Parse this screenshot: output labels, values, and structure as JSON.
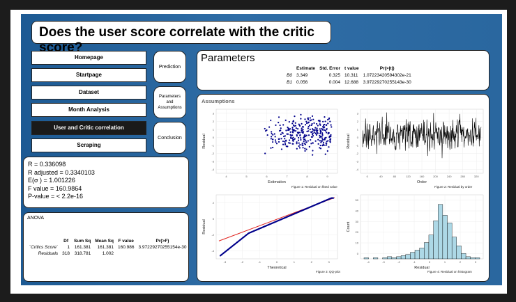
{
  "title": "Does the user score correlate with the critic score?",
  "nav": {
    "items": [
      "Homepage",
      "Startpage",
      "Dataset",
      "Month Analysis",
      "User and Critic correlation",
      "Scraping"
    ],
    "active_index": 4
  },
  "side_buttons": {
    "prediction": "Prediction",
    "parameters_line1": "Parameters",
    "parameters_line2": "and",
    "parameters_line3": "Assumptions",
    "conclusion": "Conclusion"
  },
  "stats": {
    "r": "R = 0.336098",
    "r_adj": "R adjusted = 0.3340103",
    "e_sigma": "E(σ ) = 1.001226",
    "f_value": "F value = 160.9864",
    "p_value": "P-value = < 2.2e-16"
  },
  "anova": {
    "label": "ANOVA",
    "headers": [
      "",
      "Df",
      "Sum Sq",
      "Mean Sq",
      "F value",
      "Pr(>F)"
    ],
    "rows": [
      [
        "`Critics Score`",
        "1",
        "161.381",
        "161.381",
        "160.986",
        "3.97229270255154e-30"
      ],
      [
        "Residuals",
        "318",
        "318.781",
        "1.002",
        "",
        ""
      ]
    ]
  },
  "parameters": {
    "title": "Parameters",
    "headers": [
      "",
      "Estimate",
      "Std. Error",
      "t value",
      "Pr(>|t|)"
    ],
    "rows": [
      [
        "B0",
        "3.349",
        "0.325",
        "10.311",
        "1.07223420594302e-21"
      ],
      [
        "B1",
        "0.056",
        "0.004",
        "12.688",
        "3.97229270255143e-30"
      ]
    ]
  },
  "assumptions": {
    "label": "Assumptions",
    "fig1": {
      "caption": "Figure 1: Residual on fitted value",
      "xlabel": "Estimation",
      "ylabel": "Residual",
      "xticks": [
        "4",
        "5",
        "6",
        "7",
        "8",
        "9"
      ],
      "yticks": [
        "3",
        "2",
        "1",
        "0",
        "-1",
        "-2",
        "-3",
        "-4"
      ]
    },
    "fig2": {
      "caption": "Figure 2: Residual by order",
      "xlabel": "Order",
      "ylabel": "Residual",
      "xticks": [
        "0",
        "40",
        "80",
        "120",
        "160",
        "200",
        "240",
        "280",
        "320"
      ],
      "yticks": [
        "3",
        "2",
        "1",
        "0",
        "-1",
        "-2",
        "-3",
        "-4"
      ]
    },
    "fig3": {
      "caption": "Figure 3: QQ-plot",
      "xlabel": "Theoretical",
      "ylabel": "Residual",
      "xticks": [
        "-3",
        "-2",
        "-1",
        "0",
        "1",
        "2",
        "3"
      ],
      "yticks": [
        "2",
        "0",
        "-2",
        "-4"
      ]
    },
    "fig4": {
      "caption": "Figure 4: Residual on histogram",
      "xlabel": "Residual",
      "ylabel": "Count",
      "xticks": [
        "-4",
        "-3",
        "-2",
        "-1",
        "0",
        "1",
        "2",
        "3"
      ],
      "yticks": [
        "50",
        "40",
        "30",
        "20",
        "10",
        "0"
      ]
    }
  },
  "colors": {
    "points": "#00008b",
    "qq_line": "#e0201b",
    "hist_fill": "#add8e6"
  }
}
